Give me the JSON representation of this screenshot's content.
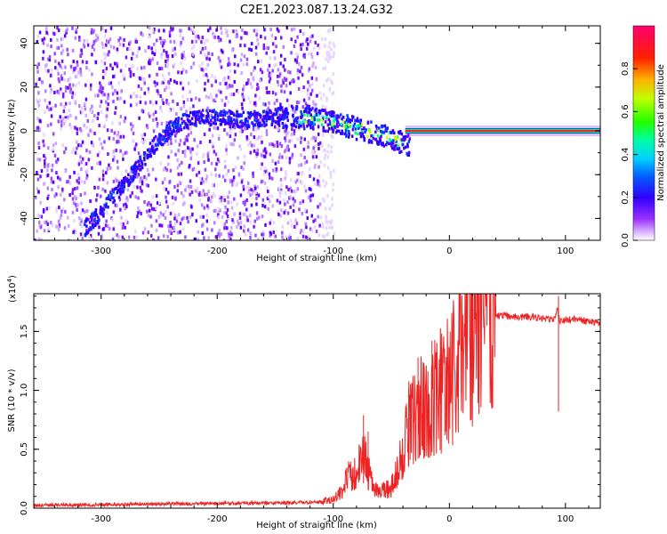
{
  "figure_title": "C2E1.2023.087.13.24.G32",
  "colorbar": {
    "label": "Normalized spectral amplitude",
    "ticks": [
      "0.0",
      "0.2",
      "0.4",
      "0.6",
      "0.8"
    ],
    "colormap": [
      "#ffffff",
      "#cc88ff",
      "#7a00ff",
      "#0000ff",
      "#00b0ff",
      "#00ffff",
      "#00ff66",
      "#66ff00",
      "#ffff00",
      "#ff8800",
      "#ff0000",
      "#ff0088"
    ]
  },
  "chart_data": [
    {
      "type": "heatmap",
      "title": "",
      "xlabel": "Height of straight line (km)",
      "ylabel": "Frequency (Hz)",
      "xlim": [
        -358,
        130
      ],
      "ylim": [
        -50,
        48
      ],
      "xticks": [
        {
          "v": -300,
          "t": "-300"
        },
        {
          "v": -200,
          "t": "-200"
        },
        {
          "v": -100,
          "t": "-100"
        },
        {
          "v": 0,
          "t": "0"
        },
        {
          "v": 100,
          "t": "100"
        }
      ],
      "yticks": [
        {
          "v": -40,
          "t": "-40"
        },
        {
          "v": -20,
          "t": "-20"
        },
        {
          "v": 0,
          "t": "0"
        },
        {
          "v": 20,
          "t": "20"
        },
        {
          "v": 40,
          "t": "40"
        }
      ],
      "noise_region_x": [
        -358,
        -112
      ],
      "ridge": {
        "x": [
          -315,
          -300,
          -285,
          -270,
          -255,
          -240,
          -225,
          -210,
          -195,
          -180,
          -165,
          -150,
          -135,
          -120,
          -105,
          -90,
          -75,
          -60,
          -45,
          -35
        ],
        "y": [
          -44,
          -36,
          -26,
          -16,
          -6,
          2,
          6,
          7,
          6,
          6,
          6,
          7,
          7,
          6,
          5,
          3,
          1,
          -1,
          -4,
          -6
        ]
      },
      "hot_band": {
        "x": [
          -38,
          130
        ],
        "y": 0
      }
    },
    {
      "type": "line",
      "title": "",
      "xlabel": "Height of straight line (km)",
      "ylabel": "SNR (10 * v/v)",
      "multiplier": "(x10",
      "multiplier_exp": "4",
      "multiplier_close": ")",
      "xlim": [
        -358,
        130
      ],
      "ylim": [
        0,
        18200
      ],
      "xticks": [
        {
          "v": -300,
          "t": "-300"
        },
        {
          "v": -200,
          "t": "-200"
        },
        {
          "v": -100,
          "t": "-100"
        },
        {
          "v": 0,
          "t": "0"
        },
        {
          "v": 100,
          "t": "100"
        }
      ],
      "yticks": [
        {
          "v": 0,
          "t": "0.0"
        },
        {
          "v": 5000,
          "t": "0.5"
        },
        {
          "v": 10000,
          "t": "1.0"
        },
        {
          "v": 15000,
          "t": "1.5"
        }
      ],
      "color": "#ee2222",
      "series": [
        {
          "x": [
            -358,
            -300,
            -200,
            -150,
            -120,
            -110,
            -100,
            -95,
            -90,
            -85,
            -80,
            -75,
            -70,
            -65,
            -60,
            -55,
            -50,
            -45,
            -40,
            -35,
            -30,
            -25,
            -20,
            -15,
            -10,
            -5,
            0,
            5,
            10,
            15,
            20,
            25,
            30,
            40,
            50,
            60,
            70,
            80,
            90,
            93,
            95,
            100,
            110,
            120,
            130
          ],
          "y": [
            250,
            300,
            400,
            450,
            500,
            550,
            700,
            1200,
            2000,
            3000,
            2800,
            4500,
            3200,
            1500,
            1200,
            1800,
            1700,
            3000,
            5000,
            7000,
            7500,
            9000,
            8000,
            9500,
            9800,
            10000,
            11000,
            12000,
            13500,
            14500,
            15300,
            15800,
            16200,
            16300,
            16300,
            16200,
            16250,
            16100,
            16000,
            17000,
            15800,
            16000,
            16100,
            15800,
            15700
          ]
        }
      ],
      "spikes": [
        {
          "x": -74,
          "y": 7900
        },
        {
          "x": -70,
          "y": 6500
        },
        {
          "x": -35,
          "y": 10200
        },
        {
          "x": -27,
          "y": 12800
        },
        {
          "x": -22,
          "y": 12300
        },
        {
          "x": -15,
          "y": 14200
        },
        {
          "x": -8,
          "y": 13000
        },
        {
          "x": 94,
          "y": 18000
        }
      ]
    }
  ]
}
